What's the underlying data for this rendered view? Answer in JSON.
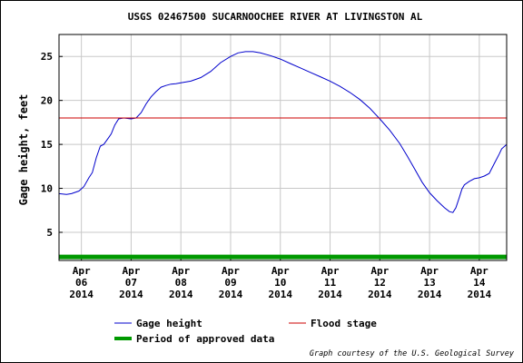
{
  "chart_data": {
    "type": "line",
    "title": "USGS 02467500 SUCARNOOCHEE RIVER AT LIVINGSTON AL",
    "ylabel": "Gage height, feet",
    "xlabel": "",
    "ylim": [
      1.8,
      27.5
    ],
    "yticks": [
      5,
      10,
      15,
      20,
      25
    ],
    "xlim": [
      5.55,
      14.55
    ],
    "xticks": [
      {
        "value": 6,
        "label": [
          "Apr",
          "06",
          "2014"
        ]
      },
      {
        "value": 7,
        "label": [
          "Apr",
          "07",
          "2014"
        ]
      },
      {
        "value": 8,
        "label": [
          "Apr",
          "08",
          "2014"
        ]
      },
      {
        "value": 9,
        "label": [
          "Apr",
          "09",
          "2014"
        ]
      },
      {
        "value": 10,
        "label": [
          "Apr",
          "10",
          "2014"
        ]
      },
      {
        "value": 11,
        "label": [
          "Apr",
          "11",
          "2014"
        ]
      },
      {
        "value": 12,
        "label": [
          "Apr",
          "12",
          "2014"
        ]
      },
      {
        "value": 13,
        "label": [
          "Apr",
          "13",
          "2014"
        ]
      },
      {
        "value": 14,
        "label": [
          "Apr",
          "14",
          "2014"
        ]
      }
    ],
    "grid": true,
    "series": [
      {
        "name": "Gage height",
        "color": "#0000cc",
        "points": [
          [
            5.55,
            9.4
          ],
          [
            5.7,
            9.3
          ],
          [
            5.8,
            9.4
          ],
          [
            5.95,
            9.7
          ],
          [
            6.05,
            10.2
          ],
          [
            6.15,
            11.2
          ],
          [
            6.22,
            11.8
          ],
          [
            6.3,
            13.5
          ],
          [
            6.38,
            14.8
          ],
          [
            6.45,
            15.0
          ],
          [
            6.55,
            15.8
          ],
          [
            6.6,
            16.2
          ],
          [
            6.67,
            17.2
          ],
          [
            6.75,
            17.9
          ],
          [
            6.85,
            18.0
          ],
          [
            7.0,
            17.9
          ],
          [
            7.1,
            18.0
          ],
          [
            7.2,
            18.6
          ],
          [
            7.3,
            19.6
          ],
          [
            7.4,
            20.4
          ],
          [
            7.5,
            21.0
          ],
          [
            7.6,
            21.5
          ],
          [
            7.7,
            21.7
          ],
          [
            7.8,
            21.85
          ],
          [
            7.9,
            21.9
          ],
          [
            8.0,
            22.0
          ],
          [
            8.2,
            22.2
          ],
          [
            8.4,
            22.6
          ],
          [
            8.6,
            23.3
          ],
          [
            8.8,
            24.3
          ],
          [
            9.0,
            25.0
          ],
          [
            9.15,
            25.4
          ],
          [
            9.3,
            25.55
          ],
          [
            9.45,
            25.55
          ],
          [
            9.6,
            25.4
          ],
          [
            9.8,
            25.1
          ],
          [
            10.0,
            24.7
          ],
          [
            10.2,
            24.2
          ],
          [
            10.4,
            23.7
          ],
          [
            10.6,
            23.2
          ],
          [
            10.8,
            22.7
          ],
          [
            11.0,
            22.2
          ],
          [
            11.2,
            21.6
          ],
          [
            11.4,
            20.9
          ],
          [
            11.6,
            20.1
          ],
          [
            11.8,
            19.1
          ],
          [
            12.0,
            17.9
          ],
          [
            12.2,
            16.6
          ],
          [
            12.4,
            15.1
          ],
          [
            12.55,
            13.7
          ],
          [
            12.7,
            12.2
          ],
          [
            12.85,
            10.7
          ],
          [
            13.0,
            9.5
          ],
          [
            13.15,
            8.6
          ],
          [
            13.3,
            7.8
          ],
          [
            13.4,
            7.35
          ],
          [
            13.47,
            7.25
          ],
          [
            13.53,
            7.8
          ],
          [
            13.6,
            9.0
          ],
          [
            13.65,
            9.9
          ],
          [
            13.7,
            10.4
          ],
          [
            13.8,
            10.8
          ],
          [
            13.9,
            11.1
          ],
          [
            14.0,
            11.2
          ],
          [
            14.1,
            11.4
          ],
          [
            14.2,
            11.7
          ],
          [
            14.3,
            12.8
          ],
          [
            14.4,
            13.9
          ],
          [
            14.45,
            14.5
          ],
          [
            14.55,
            15.0
          ]
        ]
      },
      {
        "name": "Flood stage",
        "color": "#cc0000",
        "value": 18
      },
      {
        "name": "Period of approved data",
        "color": "#009900",
        "value": 2.2,
        "x_range": [
          5.55,
          14.55
        ]
      }
    ],
    "legend": {
      "placement": "bottom",
      "items": [
        {
          "label": "Gage height",
          "color": "#0000cc"
        },
        {
          "label": "Flood stage",
          "color": "#cc0000"
        },
        {
          "label": "Period of approved data",
          "color": "#009900"
        }
      ]
    },
    "credit": "Graph courtesy of the U.S. Geological Survey"
  }
}
